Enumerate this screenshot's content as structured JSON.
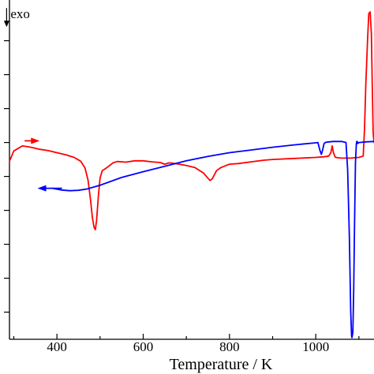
{
  "chart_data": {
    "type": "line",
    "title": "",
    "xlabel": "Temperature / K",
    "ylabel": "",
    "xlim": [
      290,
      1135
    ],
    "ylim": [
      0,
      100
    ],
    "x_ticks": [
      400,
      600,
      800,
      1000
    ],
    "y_ticks": [
      8,
      18,
      28,
      38,
      48,
      58,
      68,
      78,
      88
    ],
    "grid": false,
    "legend": "none",
    "annotations": [
      {
        "text": "exo",
        "x": 309,
        "y": 96
      }
    ],
    "arrows": [
      {
        "direction": "right",
        "color": "#ff0000",
        "x1": 325,
        "x2": 360,
        "y": 58.5
      },
      {
        "direction": "left",
        "color": "#0000ff",
        "x1": 412,
        "x2": 355,
        "y": 44.5
      }
    ],
    "series": [
      {
        "color": "#ff0000",
        "x": [
          290,
          300,
          320,
          340,
          360,
          380,
          400,
          420,
          440,
          455,
          465,
          472,
          478,
          482,
          486,
          489,
          492,
          496,
          500,
          505,
          510,
          520,
          530,
          540,
          560,
          580,
          600,
          620,
          640,
          650,
          660,
          680,
          700,
          720,
          740,
          750,
          755,
          760,
          765,
          770,
          780,
          800,
          820,
          850,
          880,
          900,
          950,
          1000,
          1020,
          1030,
          1035,
          1038,
          1041,
          1045,
          1050,
          1060,
          1080,
          1100,
          1110,
          1113,
          1116,
          1120,
          1123,
          1126,
          1129,
          1131,
          1133,
          1135
        ],
        "y": [
          52.5,
          55.5,
          57,
          56.6,
          56,
          55.6,
          55,
          54.4,
          53.6,
          52.5,
          50.5,
          47,
          41,
          36,
          33,
          32.3,
          35,
          42,
          47.5,
          49.7,
          50.1,
          51,
          52,
          52.4,
          52.2,
          52.6,
          52.6,
          52.3,
          52.1,
          51.6,
          52,
          51.7,
          51.2,
          50.6,
          49,
          47.5,
          46.8,
          47.3,
          48.5,
          49.7,
          50.6,
          51.6,
          51.8,
          52.3,
          52.8,
          53,
          53.3,
          53.6,
          53.8,
          54,
          55,
          57,
          55,
          53.7,
          53.5,
          53.4,
          53.4,
          53.6,
          54,
          62,
          75,
          88,
          96,
          96.5,
          90,
          75,
          61,
          58
        ]
      },
      {
        "color": "#0000ff",
        "x": [
          390,
          410,
          430,
          450,
          470,
          500,
          550,
          600,
          650,
          700,
          750,
          800,
          850,
          900,
          950,
          1000,
          1005,
          1010,
          1013,
          1016,
          1019,
          1022,
          1025,
          1040,
          1060,
          1070,
          1074,
          1078,
          1081,
          1083,
          1084,
          1086,
          1088,
          1090,
          1092,
          1094,
          1095,
          1096,
          1097,
          1100,
          1120,
          1135
        ],
        "y": [
          44.5,
          44,
          43.8,
          43.9,
          44.3,
          45.4,
          47.7,
          49.4,
          51,
          52.6,
          53.9,
          55,
          55.8,
          56.6,
          57.3,
          57.9,
          58,
          55.5,
          54.5,
          55.8,
          57.6,
          58,
          58.1,
          58.3,
          58.3,
          58,
          50,
          30,
          8,
          1,
          0.5,
          2,
          15,
          35,
          52,
          57.5,
          58.3,
          58.3,
          57.7,
          58,
          58.2,
          58.3
        ]
      }
    ]
  }
}
